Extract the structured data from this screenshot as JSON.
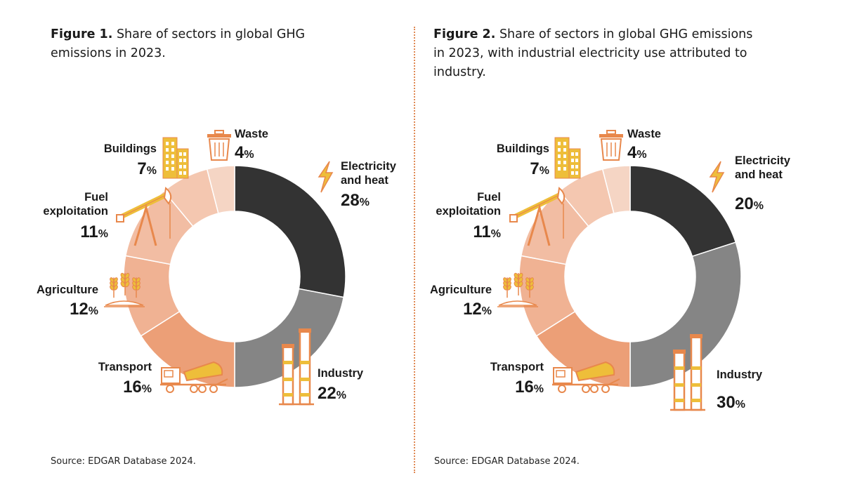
{
  "chart_data": [
    {
      "type": "pie",
      "title_prefix": "Figure 1.",
      "title": "Share of sectors in global GHG emissions in 2023.",
      "source": "Source: EDGAR Database 2024.",
      "categories": [
        "Electricity and heat",
        "Industry",
        "Transport",
        "Agriculture",
        "Fuel exploitation",
        "Buildings",
        "Waste"
      ],
      "values": [
        28,
        22,
        16,
        12,
        11,
        7,
        4
      ],
      "value_labels": [
        "28%",
        "22%",
        "16%",
        "12%",
        "11%",
        "7%",
        "4%"
      ],
      "colors": [
        "#333333",
        "#858585",
        "#ec9f77",
        "#f0b293",
        "#f2bda3",
        "#f4c7b0",
        "#f5d5c4"
      ],
      "icons": [
        "lightning-icon",
        "factory-chimney-icon",
        "cement-truck-icon",
        "wheat-icon",
        "oil-pump-icon",
        "office-building-icon",
        "trash-bin-icon"
      ],
      "label_lines": [
        [
          "Electricity",
          "and heat"
        ],
        [
          "Industry"
        ],
        [
          "Transport"
        ],
        [
          "Agriculture"
        ],
        [
          "Fuel",
          "exploitation"
        ],
        [
          "Buildings"
        ],
        [
          "Waste"
        ]
      ]
    },
    {
      "type": "pie",
      "title_prefix": "Figure 2.",
      "title": "Share of sectors in global GHG emissions in 2023, with industrial electricity use attributed to industry.",
      "source": "Source: EDGAR Database 2024.",
      "categories": [
        "Electricity and heat",
        "Industry",
        "Transport",
        "Agriculture",
        "Fuel exploitation",
        "Buildings",
        "Waste"
      ],
      "values": [
        20,
        30,
        16,
        12,
        11,
        7,
        4
      ],
      "value_labels": [
        "20%",
        "30%",
        "16%",
        "12%",
        "11%",
        "7%",
        "4%"
      ],
      "colors": [
        "#333333",
        "#858585",
        "#ec9f77",
        "#f0b293",
        "#f2bda3",
        "#f4c7b0",
        "#f5d5c4"
      ],
      "icons": [
        "lightning-icon",
        "factory-chimney-icon",
        "cement-truck-icon",
        "wheat-icon",
        "oil-pump-icon",
        "office-building-icon",
        "trash-bin-icon"
      ],
      "label_lines": [
        [
          "Electricity",
          "and heat"
        ],
        [
          "Industry"
        ],
        [
          "Transport"
        ],
        [
          "Agriculture"
        ],
        [
          "Fuel",
          "exploitation"
        ],
        [
          "Buildings"
        ],
        [
          "Waste"
        ]
      ]
    }
  ]
}
